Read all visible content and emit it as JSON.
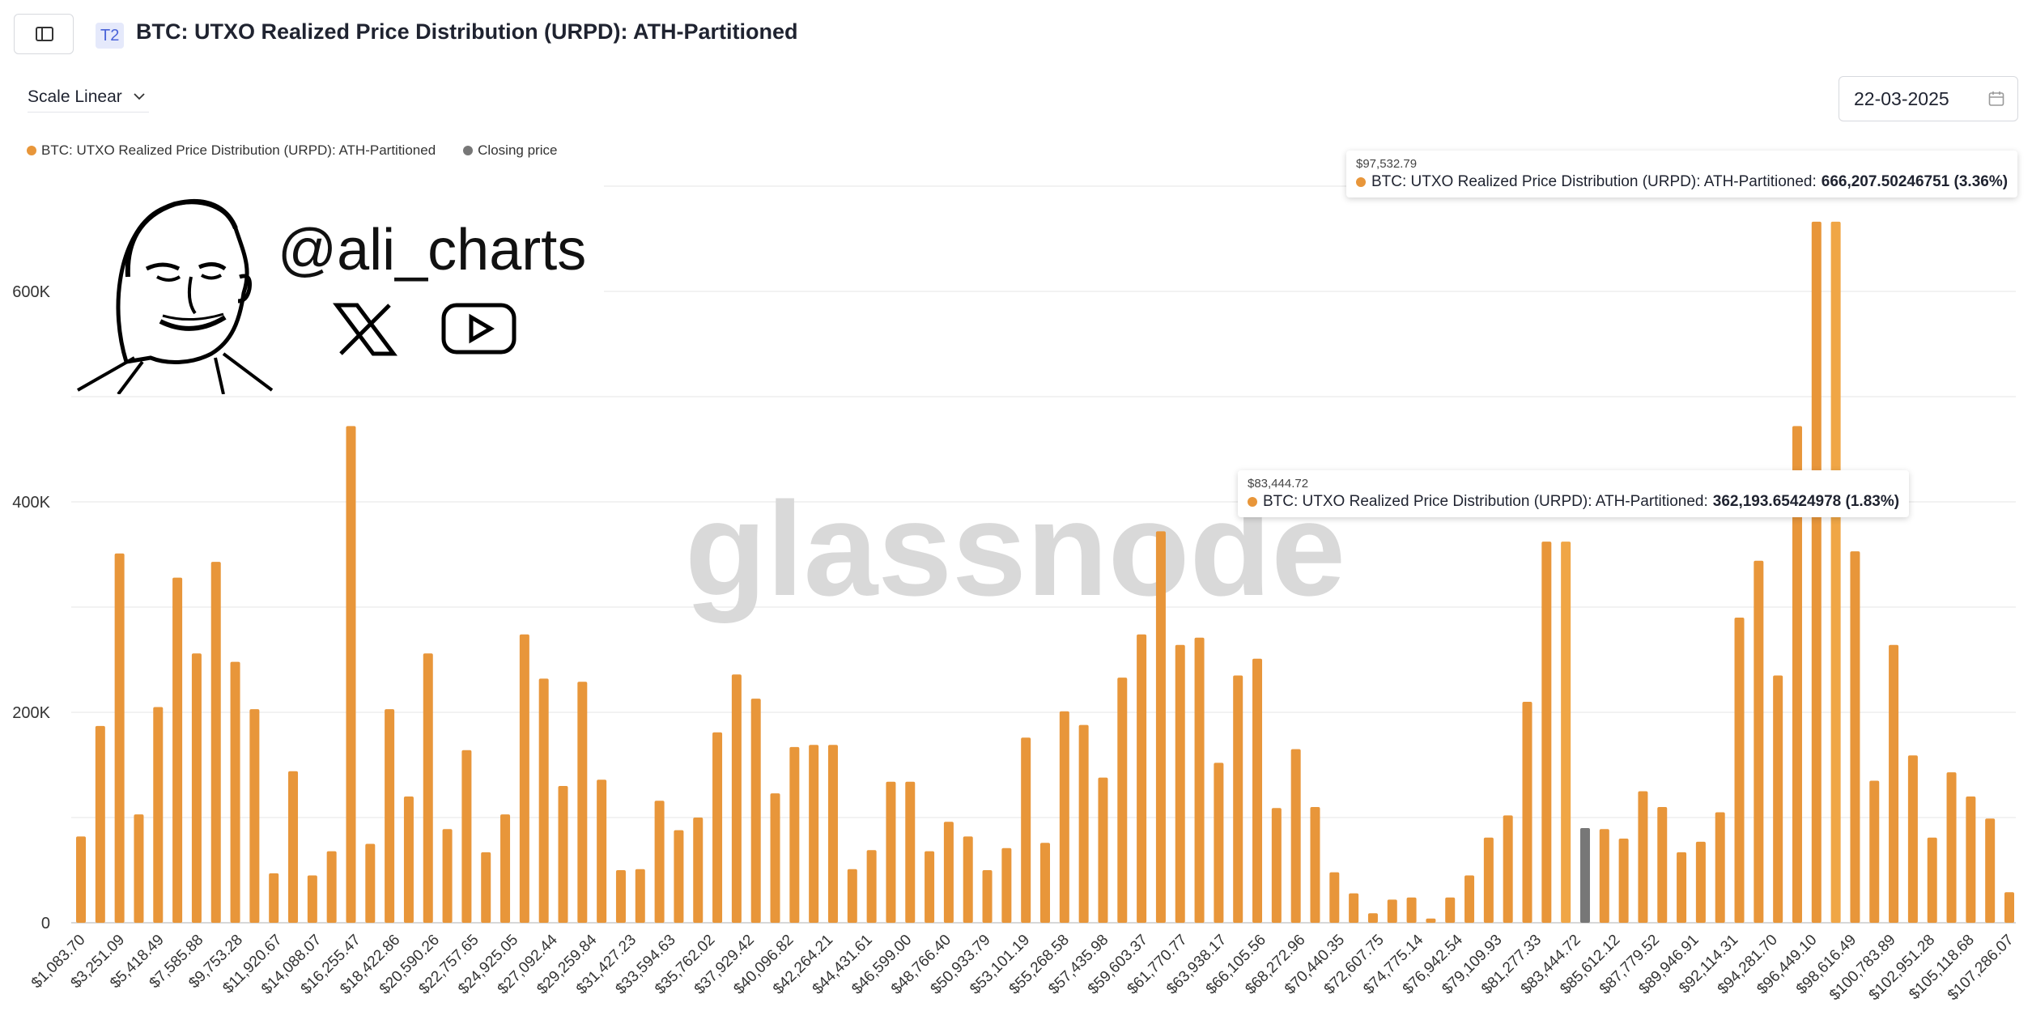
{
  "header": {
    "tier_badge": "T2",
    "title": "BTC: UTXO Realized Price Distribution (URPD): ATH-Partitioned"
  },
  "controls": {
    "scale_label": "Scale Linear",
    "date_value": "22-03-2025"
  },
  "legend": [
    {
      "label": "BTC: UTXO Realized Price Distribution (URPD): ATH-Partitioned",
      "color": "#e8963a"
    },
    {
      "label": "Closing price",
      "color": "#777777"
    }
  ],
  "watermark": {
    "handle": "@ali_charts",
    "brand": "glassnode"
  },
  "tooltips": [
    {
      "x_label": "$97,532.79",
      "series": "BTC: UTXO Realized Price Distribution (URPD): ATH-Partitioned:",
      "value": "666,207.50246751 (3.36%)"
    },
    {
      "x_label": "$83,444.72",
      "series": "BTC: UTXO Realized Price Distribution (URPD): ATH-Partitioned:",
      "value": "362,193.65424978 (1.83%)"
    }
  ],
  "chart_data": {
    "type": "bar",
    "ylim": [
      0,
      700000
    ],
    "yticks": [
      "0",
      "200K",
      "400K",
      "600K"
    ],
    "ytick_values": [
      0,
      200000,
      400000,
      600000
    ],
    "bar_color": "#e8963a",
    "highlight_color": "#f0a646",
    "closing_color": "#777777",
    "closing_index": 78,
    "highlight_indices": [
      77,
      91
    ],
    "xtick_labels": [
      "$1,083.70",
      "$3,251.09",
      "$5,418.49",
      "$7,585.88",
      "$9,753.28",
      "$11,920.67",
      "$14,088.07",
      "$16,255.47",
      "$18,422.86",
      "$20,590.26",
      "$22,757.65",
      "$24,925.05",
      "$27,092.44",
      "$29,259.84",
      "$31,427.23",
      "$33,594.63",
      "$35,762.02",
      "$37,929.42",
      "$40,096.82",
      "$42,264.21",
      "$44,431.61",
      "$46,599.00",
      "$48,766.40",
      "$50,933.79",
      "$53,101.19",
      "$55,268.58",
      "$57,435.98",
      "$59,603.37",
      "$61,770.77",
      "$63,938.17",
      "$66,105.56",
      "$68,272.96",
      "$70,440.35",
      "$72,607.75",
      "$74,775.14",
      "$76,942.54",
      "$79,109.93",
      "$81,277.33",
      "$83,444.72",
      "$85,612.12",
      "$87,779.52",
      "$89,946.91",
      "$92,114.31",
      "$94,281.70",
      "$96,449.10",
      "$98,616.49",
      "$100,783.89",
      "$102,951.28",
      "$105,118.68",
      "$107,286.07"
    ],
    "values": [
      82000,
      187000,
      351000,
      103000,
      205000,
      328000,
      256000,
      343000,
      248000,
      203000,
      47000,
      144000,
      45000,
      68000,
      472000,
      75000,
      203000,
      120000,
      256000,
      89000,
      164000,
      67000,
      103000,
      274000,
      232000,
      130000,
      229000,
      136000,
      50000,
      51000,
      116000,
      88000,
      100000,
      181000,
      236000,
      213000,
      123000,
      167000,
      169000,
      169000,
      51000,
      69000,
      134000,
      134000,
      68000,
      96000,
      82000,
      50000,
      71000,
      176000,
      76000,
      201000,
      188000,
      138000,
      233000,
      274000,
      372000,
      264000,
      271000,
      152000,
      235000,
      251000,
      109000,
      165000,
      110000,
      48000,
      28000,
      9000,
      22000,
      24000,
      4000,
      24000,
      45000,
      81000,
      102000,
      210000,
      362194,
      362194,
      90000,
      89000,
      80000,
      125000,
      110000,
      67000,
      77000,
      105000,
      290000,
      344000,
      235000,
      472000,
      666208,
      666208,
      353000,
      135000,
      264000,
      159000,
      81000,
      143000,
      120000,
      99000,
      29000
    ],
    "series": [
      {
        "name": "BTC: UTXO Realized Price Distribution (URPD): ATH-Partitioned"
      },
      {
        "name": "Closing price"
      }
    ]
  }
}
